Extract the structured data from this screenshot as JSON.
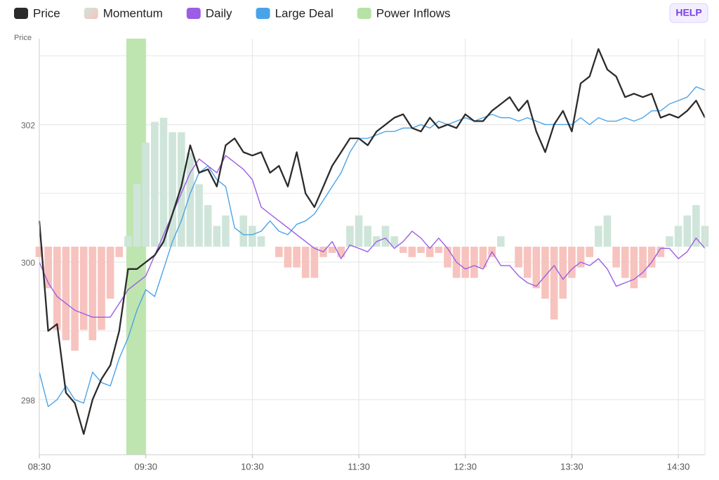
{
  "chart_data": {
    "type": "line",
    "y_label": "Price",
    "x": [
      510,
      515,
      520,
      525,
      530,
      535,
      540,
      545,
      550,
      555,
      560,
      565,
      570,
      575,
      580,
      585,
      590,
      595,
      600,
      605,
      610,
      615,
      620,
      625,
      630,
      635,
      640,
      645,
      650,
      655,
      660,
      665,
      670,
      675,
      680,
      685,
      690,
      695,
      700,
      705,
      710,
      715,
      720,
      725,
      730,
      735,
      740,
      745,
      750,
      755,
      760,
      765,
      770,
      775,
      780,
      785,
      790,
      795,
      800,
      805,
      810,
      815,
      820,
      825,
      830,
      835,
      840,
      845,
      850,
      855,
      860,
      865,
      870,
      875,
      880,
      885
    ],
    "xlim": [
      510,
      885
    ],
    "xticks": [
      {
        "value": 510,
        "label": "08:30"
      },
      {
        "value": 570,
        "label": "09:30"
      },
      {
        "value": 630,
        "label": "10:30"
      },
      {
        "value": 690,
        "label": "11:30"
      },
      {
        "value": 750,
        "label": "12:30"
      },
      {
        "value": 810,
        "label": "13:30"
      },
      {
        "value": 870,
        "label": "14:30"
      }
    ],
    "ylim": [
      297.2,
      303.25
    ],
    "yticks": [
      298,
      300,
      302
    ],
    "minor_yticks": [
      299,
      301,
      303
    ],
    "y2lim": [
      -100,
      100
    ],
    "grid": true,
    "series": [
      {
        "name": "Price",
        "color": "#2b2b2b",
        "values": [
          300.6,
          299.0,
          299.1,
          298.1,
          297.95,
          297.5,
          298.0,
          298.3,
          298.5,
          299.0,
          299.9,
          299.9,
          300.0,
          300.1,
          300.3,
          300.7,
          301.1,
          301.7,
          301.3,
          301.35,
          301.1,
          301.7,
          301.8,
          301.6,
          301.55,
          301.6,
          301.3,
          301.4,
          301.1,
          301.6,
          301.0,
          300.8,
          301.1,
          301.4,
          301.6,
          301.8,
          301.8,
          301.7,
          301.9,
          302.0,
          302.1,
          302.15,
          301.95,
          301.9,
          302.1,
          301.95,
          302.0,
          301.95,
          302.15,
          302.05,
          302.05,
          302.2,
          302.3,
          302.4,
          302.2,
          302.35,
          301.9,
          301.6,
          302.0,
          302.2,
          301.9,
          302.6,
          302.7,
          303.1,
          302.8,
          302.7,
          302.4,
          302.45,
          302.4,
          302.45,
          302.1,
          302.15,
          302.1,
          302.2,
          302.35,
          302.1
        ]
      },
      {
        "name": "Momentum",
        "type": "bar",
        "axis": "y2",
        "color": "#cfe5da",
        "negative_color": "#f7c3be",
        "values": [
          -5,
          -20,
          -40,
          -45,
          -50,
          -40,
          -45,
          -40,
          -25,
          -5,
          5,
          30,
          50,
          60,
          62,
          55,
          55,
          45,
          30,
          20,
          10,
          15,
          0,
          15,
          10,
          5,
          0,
          -5,
          -10,
          -10,
          -15,
          -15,
          -5,
          -3,
          -5,
          10,
          15,
          10,
          5,
          10,
          5,
          -3,
          -5,
          -3,
          -5,
          -3,
          -10,
          -15,
          -15,
          -15,
          -10,
          -5,
          5,
          0,
          -10,
          -15,
          -20,
          -25,
          -35,
          -25,
          -15,
          -10,
          -5,
          10,
          15,
          -10,
          -15,
          -20,
          -15,
          -10,
          -5,
          5,
          10,
          15,
          20,
          10
        ]
      },
      {
        "name": "Daily",
        "color": "#9b5de5",
        "values": [
          300.0,
          299.7,
          299.5,
          299.4,
          299.3,
          299.25,
          299.2,
          299.2,
          299.2,
          299.4,
          299.6,
          299.7,
          299.8,
          300.1,
          300.4,
          300.7,
          301.0,
          301.3,
          301.5,
          301.4,
          301.3,
          301.55,
          301.45,
          301.35,
          301.2,
          300.8,
          300.7,
          300.6,
          300.5,
          300.4,
          300.3,
          300.2,
          300.15,
          300.3,
          300.05,
          300.25,
          300.2,
          300.15,
          300.3,
          300.35,
          300.2,
          300.3,
          300.45,
          300.35,
          300.2,
          300.35,
          300.2,
          300.0,
          299.9,
          299.95,
          299.9,
          300.15,
          299.95,
          299.95,
          299.8,
          299.7,
          299.65,
          299.8,
          299.95,
          299.75,
          299.9,
          300.0,
          299.95,
          300.05,
          299.9,
          299.65,
          299.7,
          299.75,
          299.85,
          300.0,
          300.2,
          300.2,
          300.05,
          300.15,
          300.35,
          300.2
        ]
      },
      {
        "name": "Large Deal",
        "color": "#4aa3e8",
        "values": [
          298.4,
          297.9,
          298.0,
          298.2,
          298.0,
          297.95,
          298.4,
          298.25,
          298.2,
          298.6,
          298.9,
          299.3,
          299.6,
          299.5,
          299.9,
          300.3,
          300.6,
          301.0,
          301.3,
          301.4,
          301.2,
          301.1,
          300.5,
          300.4,
          300.4,
          300.45,
          300.6,
          300.45,
          300.4,
          300.55,
          300.6,
          300.7,
          300.9,
          301.1,
          301.3,
          301.6,
          301.8,
          301.8,
          301.85,
          301.9,
          301.9,
          301.95,
          301.95,
          302.0,
          301.95,
          302.05,
          302.0,
          302.05,
          302.1,
          302.05,
          302.1,
          302.15,
          302.1,
          302.1,
          302.05,
          302.1,
          302.05,
          302.0,
          302.0,
          302.0,
          302.0,
          302.1,
          302.0,
          302.1,
          302.05,
          302.05,
          302.1,
          302.05,
          302.1,
          302.2,
          302.2,
          302.3,
          302.35,
          302.4,
          302.55,
          302.5
        ]
      }
    ],
    "power_inflows": {
      "name": "Power Inflows",
      "color": "#b7e2a6",
      "ranges": [
        [
          559,
          570
        ]
      ]
    }
  },
  "help_button": {
    "label": "HELP"
  }
}
